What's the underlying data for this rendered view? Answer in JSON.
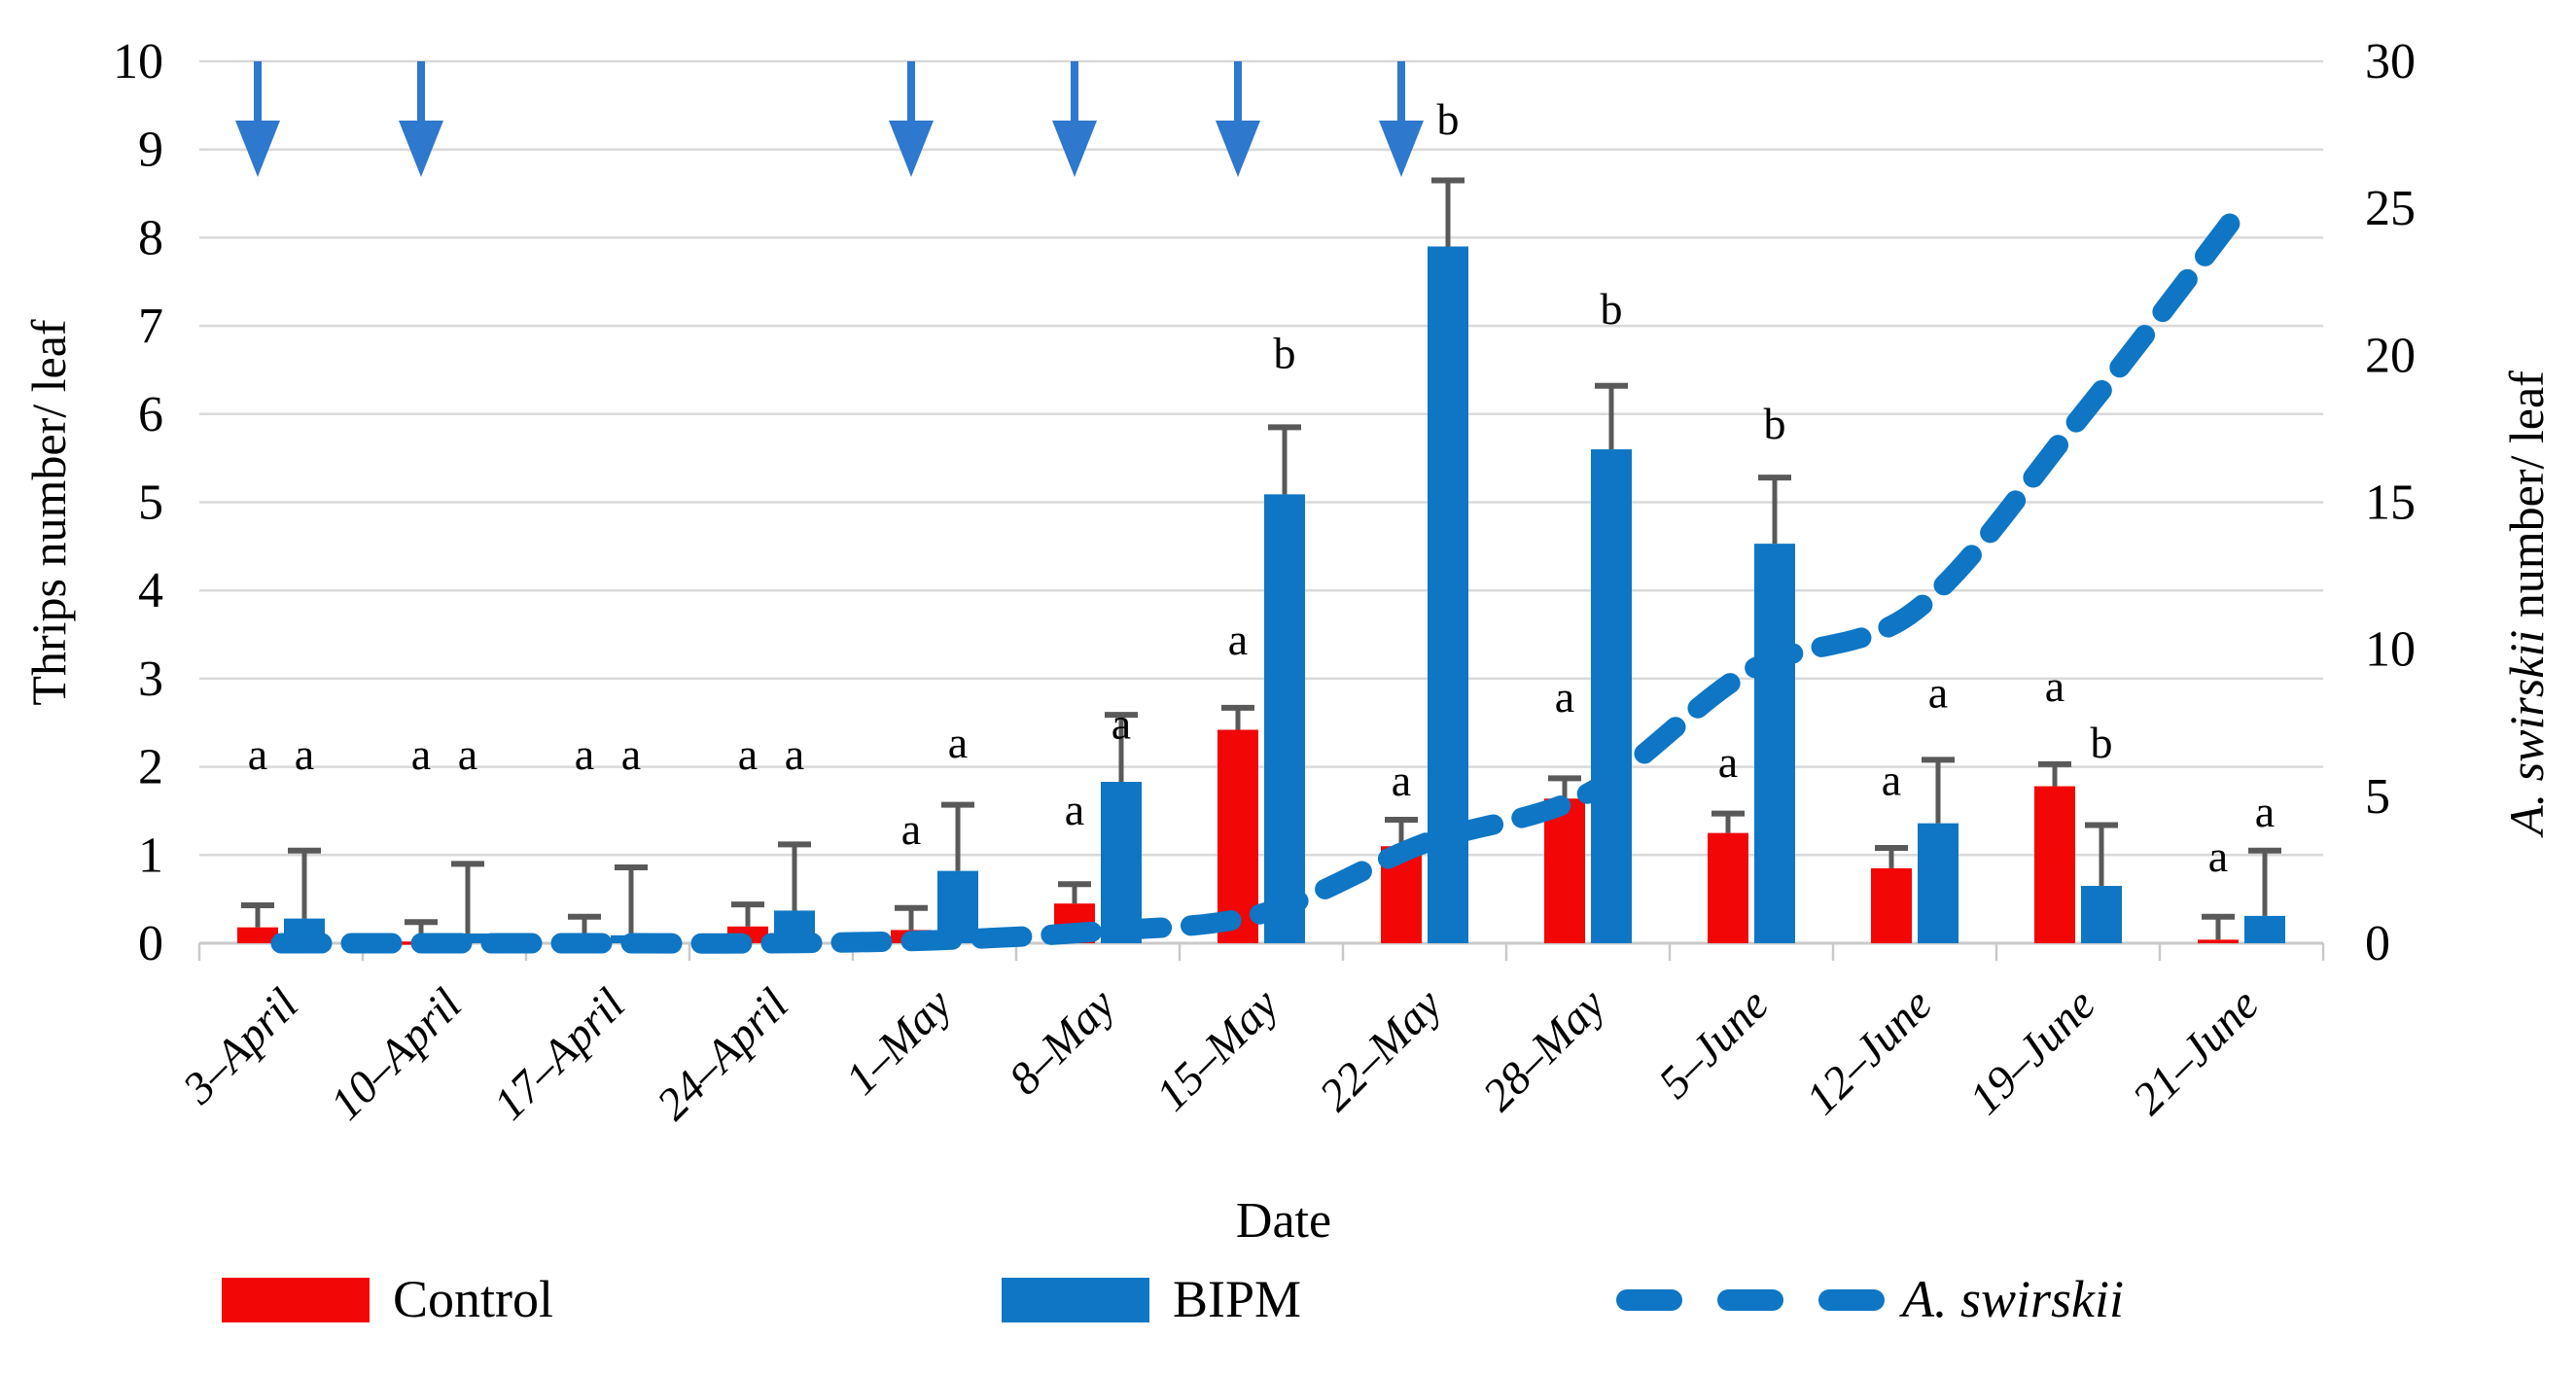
{
  "chart_data": {
    "type": "bar",
    "categories": [
      "3–April",
      "10–April",
      "17–April",
      "24–April",
      "1–May",
      "8–May",
      "15–May",
      "22–May",
      "28–May",
      "5–June",
      "12–June",
      "19–June",
      "21–June"
    ],
    "series": [
      {
        "name": "Control",
        "type": "bar",
        "color": "#f20606",
        "values": [
          0.18,
          0.02,
          0.02,
          0.19,
          0.15,
          0.45,
          2.42,
          1.1,
          1.64,
          1.25,
          0.85,
          1.78,
          0.04
        ],
        "error_upper_tops": [
          0.43,
          0.24,
          0.3,
          0.44,
          0.4,
          0.67,
          2.67,
          1.4,
          1.87,
          1.47,
          1.08,
          2.03,
          0.3
        ],
        "letters": [
          "a",
          "a",
          "a",
          "a",
          "a",
          "a",
          "a",
          "a",
          "a",
          "a",
          "a",
          "a",
          "a"
        ],
        "letter_heights": [
          2.15,
          2.15,
          2.15,
          2.15,
          1.3,
          1.52,
          3.45,
          1.85,
          2.8,
          2.06,
          1.86,
          2.92,
          0.99
        ]
      },
      {
        "name": "BIPM",
        "type": "bar",
        "color": "#0e76c4",
        "values": [
          0.28,
          0.11,
          0.09,
          0.37,
          0.82,
          1.83,
          5.09,
          7.9,
          5.6,
          4.53,
          1.36,
          0.65,
          0.31
        ],
        "error_upper_tops": [
          1.05,
          0.9,
          0.86,
          1.12,
          1.57,
          2.59,
          5.85,
          8.65,
          6.32,
          5.28,
          2.08,
          1.34,
          1.05
        ],
        "letters": [
          "a",
          "a",
          "a",
          "a",
          "a",
          "a",
          "b",
          "b",
          "b",
          "b",
          "a",
          "b",
          "a"
        ],
        "letter_heights": [
          2.15,
          2.15,
          2.15,
          2.15,
          2.28,
          2.5,
          6.7,
          9.35,
          7.2,
          5.9,
          2.85,
          2.28,
          1.5
        ]
      },
      {
        "name": "A. swirskii",
        "type": "line",
        "axis": "right",
        "dashed": true,
        "color": "#0e76c4",
        "values": [
          0,
          0,
          0,
          0,
          0.1,
          0.4,
          1.0,
          3.4,
          5.1,
          9.3,
          11.3,
          17.8,
          25.0
        ]
      }
    ],
    "release_arrows": {
      "category_indices": [
        0,
        1,
        4,
        5,
        6,
        7
      ],
      "color": "#2e78cd"
    },
    "left_axis": {
      "title": "Thrips number/ leaf",
      "min": 0,
      "max": 10,
      "tick_step": 1,
      "tick_labels": [
        "0",
        "1",
        "2",
        "3",
        "4",
        "5",
        "6",
        "7",
        "8",
        "9",
        "10"
      ]
    },
    "right_axis": {
      "title_italic": "A. swirskii",
      "title_rest": " number/ leaf",
      "min": 0,
      "max": 30,
      "tick_step": 5,
      "tick_labels": [
        "0",
        "5",
        "10",
        "15",
        "20",
        "25",
        "30"
      ]
    },
    "x_axis": {
      "title": "Date"
    },
    "legend": [
      {
        "label": "Control",
        "swatch": "bar",
        "color": "#f20606"
      },
      {
        "label": "BIPM",
        "swatch": "bar",
        "color": "#0e76c4"
      },
      {
        "label": "A. swirskii",
        "swatch": "dashed-line",
        "color": "#0e76c4",
        "italic": true
      }
    ],
    "grid": {
      "on": true,
      "color": "#d9d9d9"
    },
    "error_bar_color": "#595959",
    "axis_line_color": "#c9c9c9",
    "layout": {
      "legend_position": "bottom",
      "x_label_rotation": -45
    }
  }
}
